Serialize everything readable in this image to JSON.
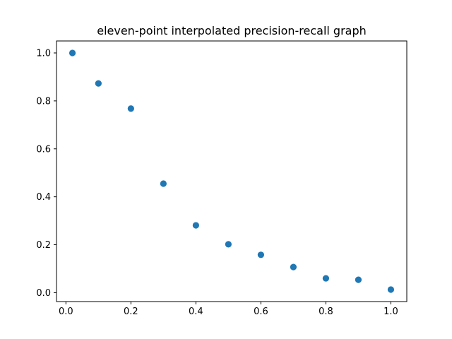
{
  "chart_data": {
    "type": "scatter",
    "title": "eleven-point interpolated precision-recall graph",
    "xlabel": "",
    "ylabel": "",
    "x": [
      0.02,
      0.1,
      0.2,
      0.3,
      0.4,
      0.5,
      0.6,
      0.7,
      0.8,
      0.9,
      1.0
    ],
    "y": [
      1.0,
      0.873,
      0.768,
      0.455,
      0.281,
      0.202,
      0.158,
      0.107,
      0.06,
      0.054,
      0.013
    ],
    "xlim": [
      -0.029,
      1.049
    ],
    "ylim": [
      -0.037,
      1.05
    ],
    "xticks": [
      0.0,
      0.2,
      0.4,
      0.6,
      0.8,
      1.0
    ],
    "yticks": [
      0.0,
      0.2,
      0.4,
      0.6,
      0.8,
      1.0
    ],
    "xtick_labels": [
      "0.0",
      "0.2",
      "0.4",
      "0.6",
      "0.8",
      "1.0"
    ],
    "ytick_labels": [
      "0.0",
      "0.2",
      "0.4",
      "0.6",
      "0.8",
      "1.0"
    ],
    "grid": false,
    "legend": "none",
    "marker_color": "#1f77b4"
  }
}
